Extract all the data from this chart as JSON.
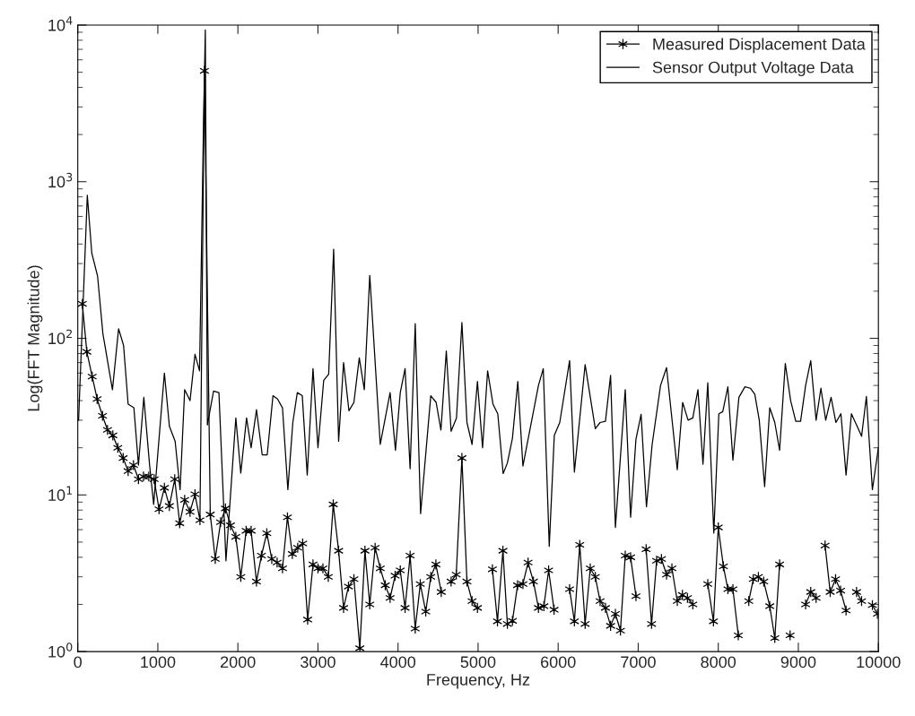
{
  "chart_data": {
    "type": "line",
    "xlabel": "Frequency, Hz",
    "ylabel": "Log(FFT Magnitude)",
    "log": "y",
    "grid": false,
    "legend": "top right",
    "xlim": [
      0,
      10000
    ],
    "xticks": [
      0,
      1000,
      2000,
      3000,
      4000,
      5000,
      6000,
      7000,
      8000,
      9000,
      10000
    ],
    "ylim": [
      1,
      10000
    ],
    "yticks": [
      {
        "value": 1,
        "label": "10$^{0}$"
      },
      {
        "value": 10,
        "label": "10$^{1}$"
      },
      {
        "value": 100,
        "label": "10$^{2}$"
      },
      {
        "value": 1000,
        "label": "10$^{3}$"
      },
      {
        "value": 10000,
        "label": "10$^{4}$"
      }
    ],
    "series": [
      {
        "name": "Measured Displacement Data",
        "color": "#000000",
        "marker": "cross",
        "line_style": "solid",
        "x": [
          57,
          113,
          180,
          242,
          309,
          371,
          438,
          500,
          567,
          629,
          696,
          758,
          820,
          887,
          954,
          1015,
          1082,
          1144,
          1211,
          1273,
          1335,
          1402,
          1464,
          1526,
          1582,
          1655,
          1717,
          1784,
          1845,
          1907,
          1974,
          2036,
          2103,
          2165,
          2232,
          2294,
          2361,
          2423,
          2490,
          2557,
          2619,
          2680,
          2747,
          2809,
          2871,
          2938,
          3000,
          3062,
          3129,
          3191,
          3258,
          3320,
          3381,
          3449,
          3523,
          3587,
          3647,
          3714,
          3778,
          3841,
          3901,
          3964,
          4028,
          4088,
          4151,
          4215,
          4278,
          4346,
          4409,
          4473,
          4540,
          4600,
          4663,
          4727,
          4798,
          4861,
          4925,
          4992,
          5056,
          5179,
          5242,
          5310,
          5366,
          5429,
          5493,
          5560,
          5624,
          5691,
          5754,
          5822,
          5881,
          5949,
          6008,
          6143,
          6203,
          6270,
          6337,
          6401,
          6464,
          6524,
          6591,
          6655,
          6715,
          6778,
          6838,
          6905,
          6972,
          7036,
          7099,
          7167,
          7230,
          7290,
          7354,
          7421,
          7488,
          7552,
          7615,
          7682,
          7746,
          7869,
          7940,
          8000,
          8064,
          8120,
          8183,
          8250,
          8314,
          8381,
          8437,
          8501,
          8568,
          8643,
          8706,
          8766,
          8830,
          8897,
          8960,
          9091,
          9155,
          9222,
          9282,
          9334,
          9398,
          9465,
          9528,
          9596,
          9660,
          9727,
          9790,
          9855,
          9925,
          9988
        ],
        "values": [
          166,
          82,
          57,
          41,
          32,
          26,
          24,
          20,
          17.2,
          14.2,
          15.5,
          12.6,
          13.1,
          13.1,
          12.6,
          8.1,
          11.1,
          8.5,
          12.6,
          6.6,
          9.3,
          7.8,
          10.1,
          6.9,
          5100,
          7.5,
          3.9,
          6.7,
          8.2,
          6.4,
          5.4,
          3.0,
          5.9,
          5.9,
          2.8,
          4.1,
          5.7,
          3.9,
          3.7,
          3.4,
          7.2,
          4.2,
          4.6,
          4.9,
          1.6,
          3.6,
          3.4,
          3.4,
          3.0,
          8.7,
          4.4,
          1.9,
          2.6,
          2.9,
          1.05,
          4.4,
          2.0,
          4.6,
          3.4,
          2.65,
          2.2,
          3.05,
          3.3,
          1.9,
          4.1,
          1.4,
          2.7,
          1.8,
          3.0,
          3.6,
          2.4,
          null,
          2.8,
          3.1,
          17.2,
          2.8,
          2.1,
          1.9,
          null,
          3.35,
          1.56,
          4.4,
          1.5,
          1.57,
          2.65,
          2.7,
          3.7,
          2.8,
          1.9,
          1.95,
          3.3,
          1.85,
          null,
          2.5,
          1.56,
          4.8,
          1.5,
          3.4,
          3.0,
          2.1,
          1.9,
          1.46,
          1.74,
          1.36,
          4.1,
          4.0,
          2.26,
          null,
          4.5,
          1.5,
          3.8,
          3.9,
          3.1,
          3.4,
          2.1,
          2.3,
          2.2,
          2.0,
          null,
          2.7,
          1.56,
          6.2,
          3.5,
          2.5,
          2.5,
          1.27,
          null,
          2.1,
          2.9,
          3.0,
          2.8,
          1.95,
          1.22,
          3.6,
          null,
          1.27,
          null,
          2.0,
          2.4,
          2.2,
          null,
          4.75,
          2.4,
          2.9,
          2.45,
          1.83,
          null,
          2.4,
          2.1,
          null,
          1.98,
          1.74
        ]
      },
      {
        "name": "Sensor Output Voltage Data",
        "color": "#000000",
        "marker": "none",
        "line_style": "solid",
        "x": [
          10,
          119,
          175,
          247,
          314,
          433,
          510,
          572,
          629,
          701,
          758,
          825,
          897,
          948,
          1082,
          1144,
          1216,
          1278,
          1335,
          1402,
          1464,
          1521,
          1572,
          1593,
          1619,
          1696,
          1763,
          1851,
          1974,
          2036,
          2108,
          2165,
          2232,
          2304,
          2366,
          2438,
          2495,
          2557,
          2624,
          2686,
          2742,
          2804,
          2866,
          2938,
          3000,
          3072,
          3134,
          3196,
          3258,
          3320,
          3387,
          3449,
          3516,
          3579,
          3647,
          3778,
          3901,
          3968,
          4028,
          4088,
          4151,
          4215,
          4282,
          4409,
          4476,
          4536,
          4603,
          4663,
          4730,
          4798,
          4861,
          4925,
          4992,
          5056,
          5119,
          5186,
          5246,
          5313,
          5366,
          5429,
          5496,
          5560,
          5754,
          5814,
          5889,
          5952,
          6020,
          6143,
          6203,
          6337,
          6464,
          6524,
          6591,
          6655,
          6715,
          6838,
          6905,
          6972,
          7036,
          7103,
          7174,
          7279,
          7354,
          7488,
          7555,
          7623,
          7682,
          7746,
          7809,
          7869,
          7944,
          8007,
          8056,
          8120,
          8183,
          8258,
          8333,
          8400,
          8456,
          8512,
          8579,
          8643,
          8706,
          8766,
          8837,
          8904,
          8968,
          9028,
          9091,
          9155,
          9222,
          9282,
          9342,
          9409,
          9469,
          9532,
          9596,
          9663,
          9727,
          9790,
          9850,
          9925,
          10000
        ],
        "values": [
          30,
          820,
          350,
          250,
          107,
          47,
          115,
          90,
          38,
          36,
          15.5,
          42,
          15.5,
          8.7,
          60,
          27.5,
          22,
          10.8,
          47,
          40,
          79,
          62,
          2600,
          9300,
          28,
          46,
          45,
          3.8,
          31,
          13.8,
          31,
          20,
          35,
          18,
          18,
          43,
          41,
          36,
          10.8,
          29,
          45,
          43,
          13.4,
          64,
          20,
          54,
          59,
          370,
          22,
          70,
          34.5,
          39,
          75,
          47,
          252,
          21,
          45,
          19.3,
          45,
          64,
          14.7,
          124,
          7.6,
          43,
          39,
          26,
          83,
          25.5,
          31,
          126,
          29,
          21,
          53,
          20,
          62,
          38,
          33,
          13.7,
          16,
          23,
          53,
          15.3,
          50,
          64,
          4.7,
          24,
          29,
          72,
          14,
          68,
          26.5,
          29,
          29.5,
          58,
          6.2,
          47,
          7.2,
          22.7,
          32.7,
          8.4,
          21,
          50,
          65,
          14.5,
          39,
          30,
          31,
          47,
          15.7,
          52,
          5.7,
          33,
          34,
          49,
          16.7,
          42,
          49,
          48,
          44,
          30,
          11.3,
          36,
          29,
          19.3,
          69,
          40,
          29.5,
          29.5,
          50,
          72,
          30,
          48,
          30,
          42,
          29,
          33,
          13.4,
          33,
          28,
          23.7,
          42.5,
          10.8,
          20
        ]
      }
    ]
  }
}
